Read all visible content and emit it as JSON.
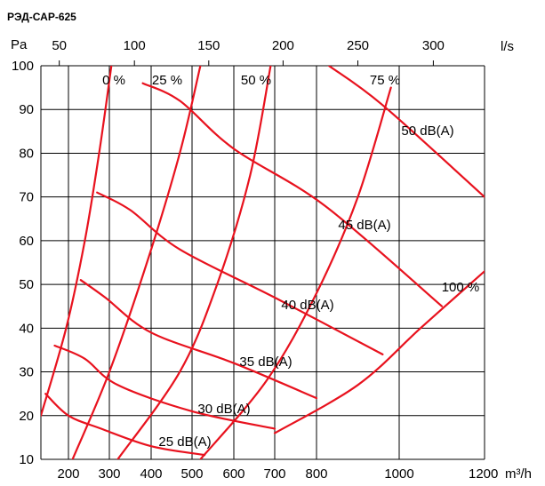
{
  "chart_data": {
    "type": "line",
    "title": "РЭД-САР-625",
    "ylabel": "Pa",
    "xlabel_bottom": "m³/h",
    "xlabel_top": "l/s",
    "ylim": [
      10,
      100
    ],
    "xlim_bottom": [
      140,
      1200
    ],
    "y_ticks": [
      10,
      20,
      30,
      40,
      50,
      60,
      70,
      80,
      90,
      100
    ],
    "x_ticks_bottom": [
      200,
      300,
      400,
      500,
      600,
      700,
      800,
      1000,
      1200
    ],
    "x_ticks_top": [
      50,
      100,
      150,
      200,
      250,
      300
    ],
    "grid": true,
    "damper_curves": [
      {
        "label": "0 %",
        "points": [
          [
            140,
            20
          ],
          [
            195,
            40
          ],
          [
            240,
            60
          ],
          [
            275,
            80
          ],
          [
            305,
            100
          ]
        ]
      },
      {
        "label": "25 %",
        "points": [
          [
            210,
            10
          ],
          [
            300,
            30
          ],
          [
            390,
            55
          ],
          [
            470,
            80
          ],
          [
            520,
            100
          ]
        ]
      },
      {
        "label": "50 %",
        "points": [
          [
            320,
            10
          ],
          [
            470,
            30
          ],
          [
            560,
            50
          ],
          [
            640,
            75
          ],
          [
            690,
            100
          ]
        ]
      },
      {
        "label": "75 %",
        "points": [
          [
            520,
            10
          ],
          [
            680,
            28
          ],
          [
            800,
            48
          ],
          [
            900,
            70
          ],
          [
            980,
            95
          ]
        ]
      },
      {
        "label": "100 %",
        "points": [
          [
            700,
            16
          ],
          [
            900,
            27
          ],
          [
            1050,
            40
          ],
          [
            1200,
            53
          ]
        ]
      }
    ],
    "sound_curves": [
      {
        "label": "25 dB(A)",
        "points": [
          [
            150,
            25
          ],
          [
            200,
            20
          ],
          [
            280,
            17
          ],
          [
            400,
            13
          ],
          [
            530,
            11
          ]
        ]
      },
      {
        "label": "30 dB(A)",
        "points": [
          [
            170,
            36
          ],
          [
            240,
            33
          ],
          [
            320,
            27
          ],
          [
            500,
            21
          ],
          [
            700,
            17
          ]
        ]
      },
      {
        "label": "35 dB(A)",
        "points": [
          [
            230,
            51
          ],
          [
            290,
            47
          ],
          [
            400,
            39
          ],
          [
            600,
            32
          ],
          [
            800,
            24
          ]
        ]
      },
      {
        "label": "40 dB(A)",
        "points": [
          [
            270,
            71
          ],
          [
            350,
            67
          ],
          [
            470,
            58
          ],
          [
            700,
            47
          ],
          [
            960,
            34
          ]
        ]
      },
      {
        "label": "45 dB(A)",
        "points": [
          [
            380,
            96
          ],
          [
            470,
            92
          ],
          [
            600,
            81
          ],
          [
            820,
            68
          ],
          [
            1100,
            45
          ]
        ]
      },
      {
        "label": "50 dB(A)",
        "points": [
          [
            830,
            100
          ],
          [
            960,
            91
          ],
          [
            1200,
            70
          ]
        ]
      }
    ]
  }
}
